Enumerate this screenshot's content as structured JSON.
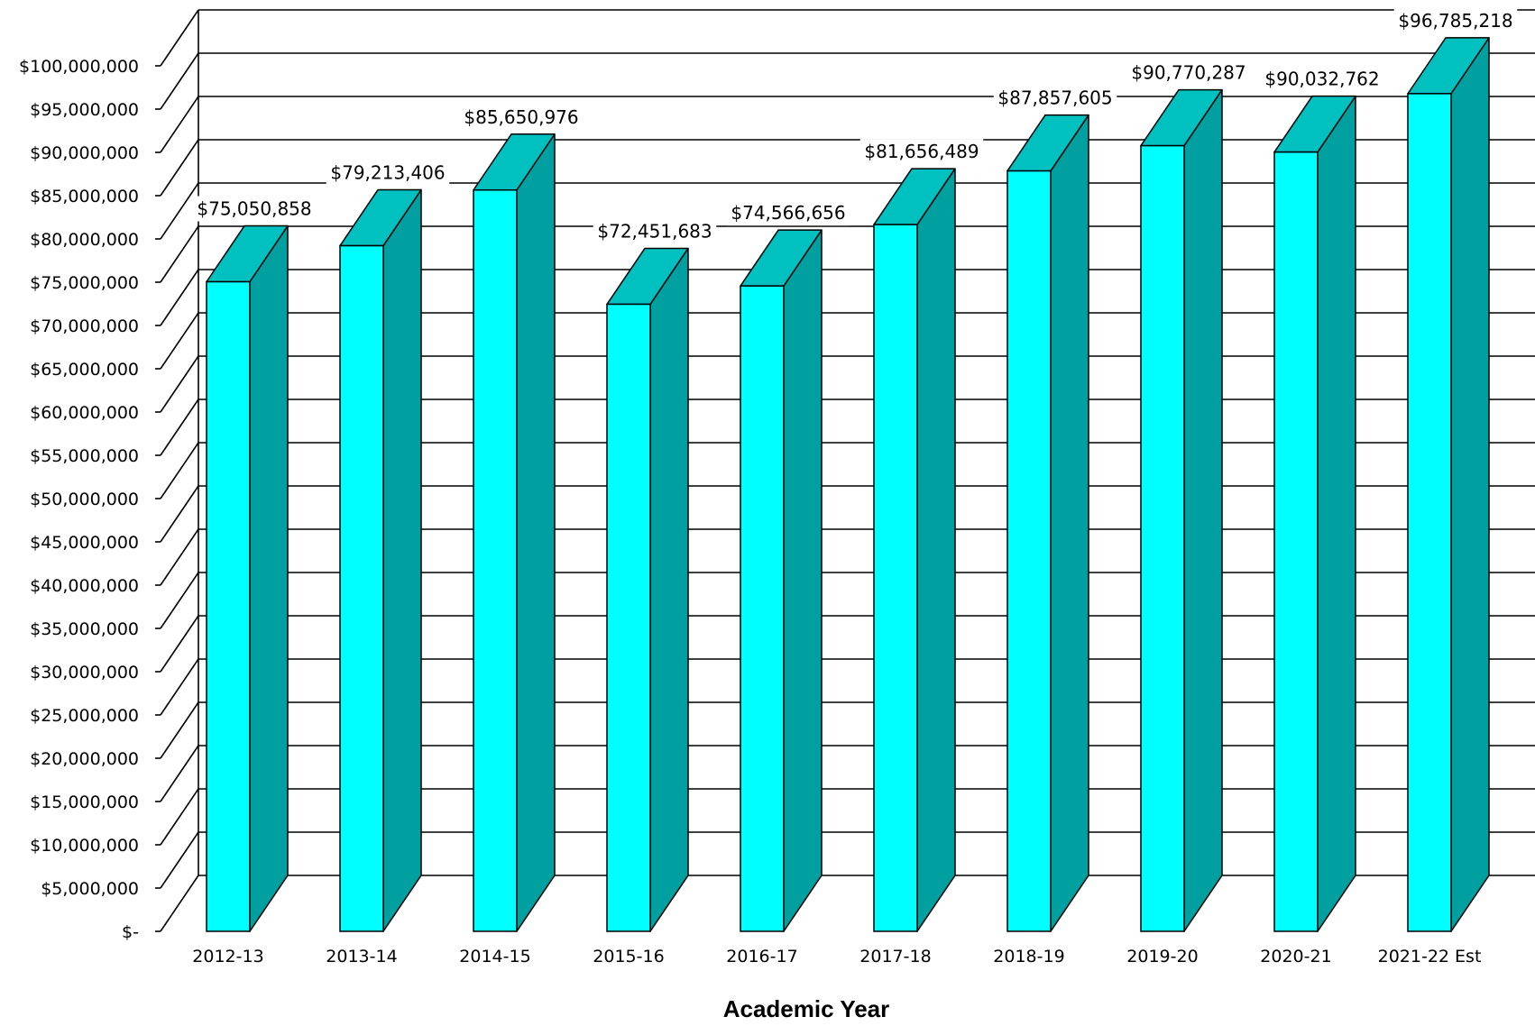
{
  "chart_data": {
    "type": "bar",
    "style": "3d-column",
    "title": "",
    "xlabel": "Academic Year",
    "ylabel": "",
    "categories": [
      "2012-13",
      "2013-14",
      "2014-15",
      "2015-16",
      "2016-17",
      "2017-18",
      "2018-19",
      "2019-20",
      "2020-21",
      "2021-22 Est"
    ],
    "values": [
      75050858,
      79213406,
      85650976,
      72451683,
      74566656,
      81656489,
      87857605,
      90770287,
      90032762,
      96785218
    ],
    "data_labels": [
      "$75,050,858",
      "$79,213,406",
      "$85,650,976",
      "$72,451,683",
      "$74,566,656",
      "$81,656,489",
      "$87,857,605",
      "$90,770,287",
      "$90,032,762",
      "$96,785,218"
    ],
    "ylim": [
      0,
      100000000
    ],
    "ytick_step": 5000000,
    "ytick_labels": [
      "$-",
      "$5,000,000",
      "$10,000,000",
      "$15,000,000",
      "$20,000,000",
      "$25,000,000",
      "$30,000,000",
      "$35,000,000",
      "$40,000,000",
      "$45,000,000",
      "$50,000,000",
      "$55,000,000",
      "$60,000,000",
      "$65,000,000",
      "$70,000,000",
      "$75,000,000",
      "$80,000,000",
      "$85,000,000",
      "$90,000,000",
      "$95,000,000",
      "$100,000,000"
    ],
    "grid": true,
    "legend": "none",
    "colors": {
      "bar_front": "#00ffff",
      "bar_top": "#00c0c0",
      "bar_side": "#00a0a0",
      "outline": "#000000",
      "grid": "#000000"
    }
  }
}
